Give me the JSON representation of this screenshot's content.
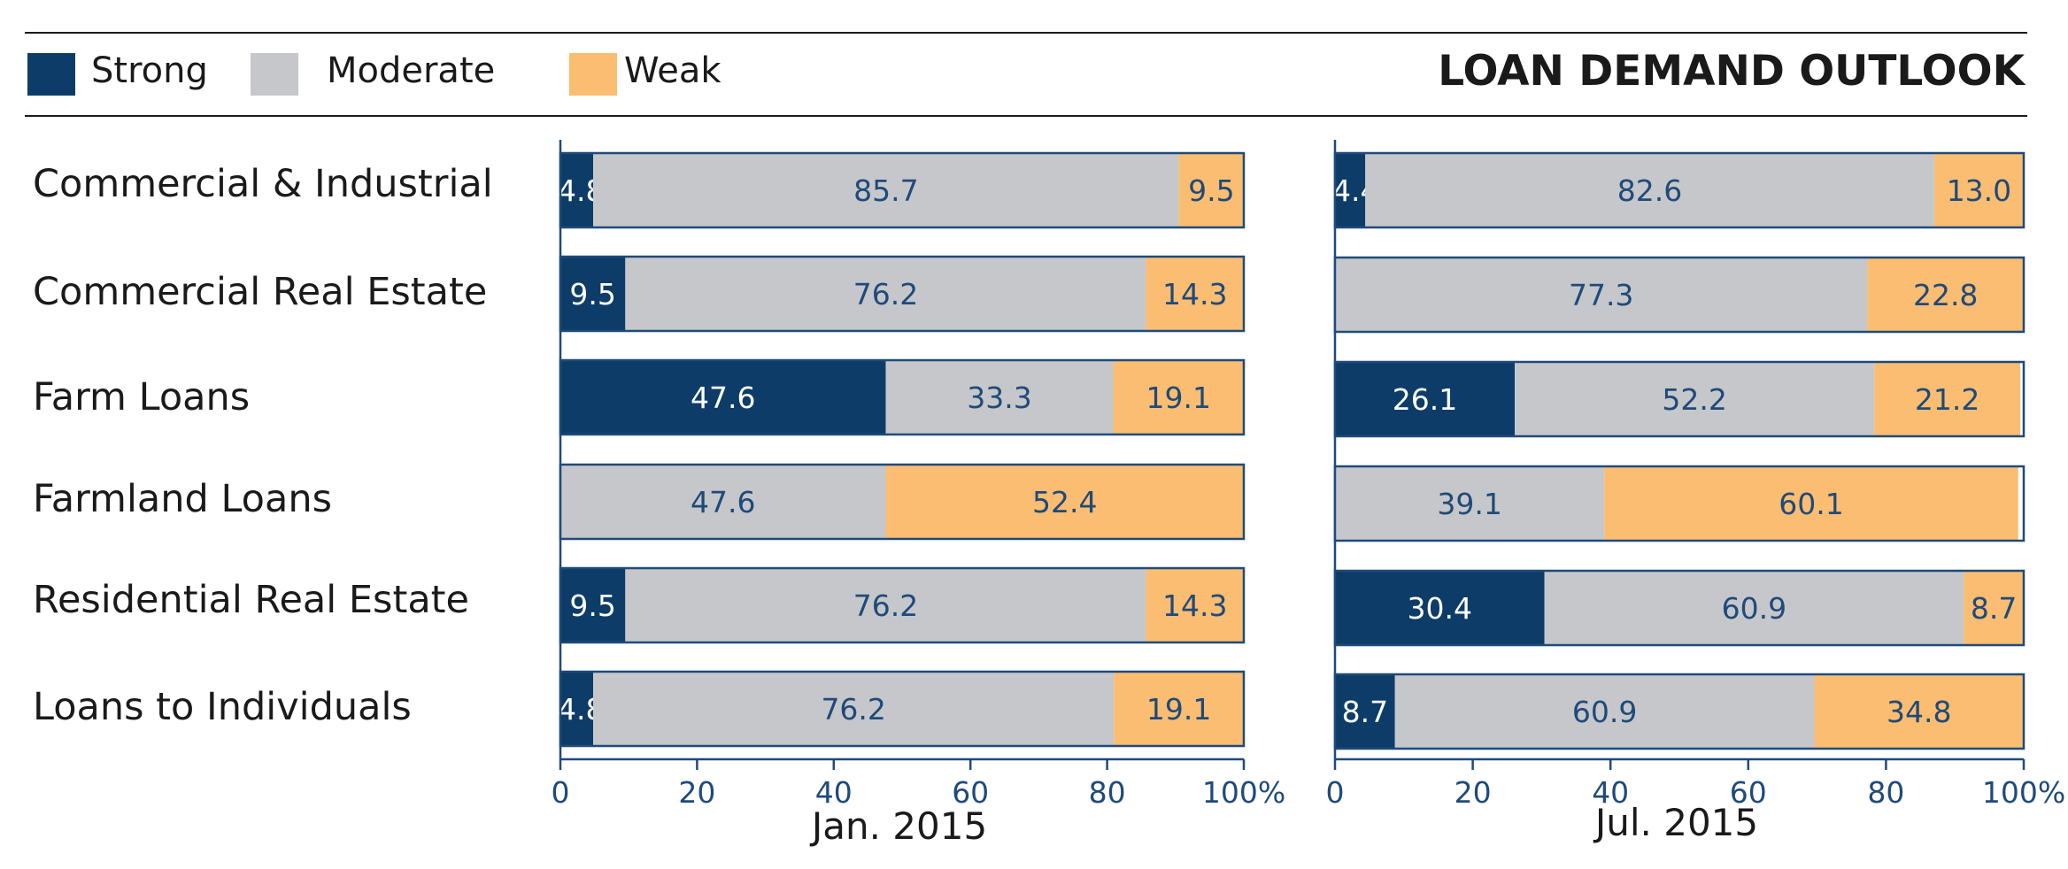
{
  "chart_data": {
    "type": "bar",
    "orientation": "horizontal-stacked",
    "title": "LOAN DEMAND OUTLOOK",
    "categories": [
      "Commercial & Industrial",
      "Commercial Real Estate",
      "Farm Loans",
      "Farmland Loans",
      "Residential Real Estate",
      "Loans to Individuals"
    ],
    "legend": [
      {
        "name": "Strong",
        "color": "#0d3c69"
      },
      {
        "name": "Moderate",
        "color": "#c6c7ca"
      },
      {
        "name": "Weak",
        "color": "#fbbd71"
      }
    ],
    "xlim": [
      0,
      100
    ],
    "x_ticks": [
      "0",
      "20",
      "40",
      "60",
      "80",
      "100%"
    ],
    "panels": [
      {
        "title": "Jan. 2015",
        "series": [
          {
            "name": "Strong",
            "values": [
              4.8,
              9.5,
              47.6,
              0,
              9.5,
              4.8
            ],
            "labels": [
              "4.8",
              "9.5",
              "47.6",
              "",
              "9.5",
              "4.8"
            ]
          },
          {
            "name": "Moderate",
            "values": [
              85.7,
              76.2,
              33.3,
              47.6,
              76.2,
              76.2
            ],
            "labels": [
              "85.7",
              "76.2",
              "33.3",
              "47.6",
              "76.2",
              "76.2"
            ]
          },
          {
            "name": "Weak",
            "values": [
              9.5,
              14.3,
              19.1,
              52.4,
              14.3,
              19.1
            ],
            "labels": [
              "9.5",
              "14.3",
              "19.1",
              "52.4",
              "14.3",
              "19.1"
            ]
          }
        ]
      },
      {
        "title": "Jul. 2015",
        "series": [
          {
            "name": "Strong",
            "values": [
              4.4,
              0,
              26.1,
              0,
              30.4,
              8.7
            ],
            "labels": [
              "4.4",
              "",
              "26.1",
              "",
              "30.4",
              "8.7"
            ]
          },
          {
            "name": "Moderate",
            "values": [
              82.6,
              77.3,
              52.2,
              39.1,
              60.9,
              60.9
            ],
            "labels": [
              "82.6",
              "77.3",
              "52.2",
              "39.1",
              "60.9",
              "60.9"
            ]
          },
          {
            "name": "Weak",
            "values": [
              13.0,
              22.8,
              21.2,
              60.1,
              8.7,
              34.8
            ],
            "labels": [
              "13.0",
              "22.8",
              "21.2",
              "60.1",
              "8.7",
              "34.8"
            ]
          }
        ]
      }
    ],
    "colors": {
      "strong": "#0d3c69",
      "moderate": "#c6c7ca",
      "weak": "#fbbd71",
      "axis": "#1f4a7a",
      "text_dark_bar": "#ffffff",
      "text_light_bar": "#1f4a7a"
    }
  }
}
